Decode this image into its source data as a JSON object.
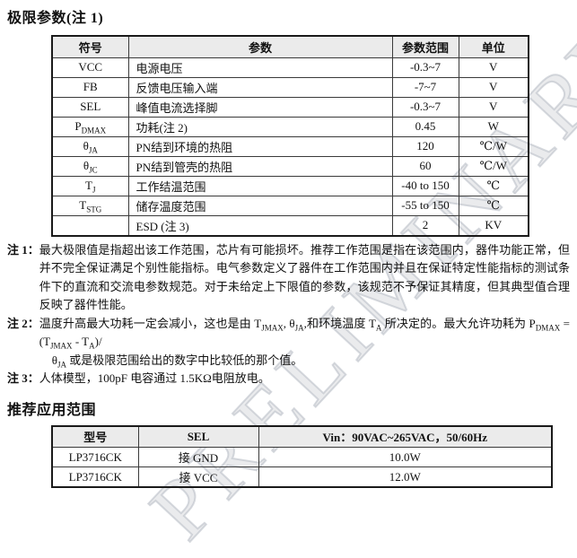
{
  "watermark": {
    "text": "PRELIMINARY"
  },
  "colors": {
    "table_header_bg": "#ebebeb",
    "table_border": "#1a1a1a",
    "text": "#111111",
    "watermark": "#b9bec5"
  },
  "sections": {
    "limits_title": "极限参数(注 1)",
    "apps_title": "推荐应用范围"
  },
  "limits_table": {
    "headers": {
      "symbol": "符号",
      "param": "参数",
      "range": "参数范围",
      "unit": "单位"
    },
    "rows": [
      {
        "symbol": "VCC",
        "param": "电源电压",
        "range": "-0.3~7",
        "unit": "V"
      },
      {
        "symbol": "FB",
        "param": "反馈电压输入端",
        "range": "-7~7",
        "unit": "V"
      },
      {
        "symbol": "SEL",
        "param": "峰值电流选择脚",
        "range": "-0.3~7",
        "unit": "V"
      },
      {
        "symbol": "P~DMAX~",
        "param": "功耗(注 2)",
        "range": "0.45",
        "unit": "W"
      },
      {
        "symbol": "θ~JA~",
        "param": "PN结到环境的热阻",
        "range": "120",
        "unit": "℃/W"
      },
      {
        "symbol": "θ~JC~",
        "param": "PN结到管壳的热阻",
        "range": "60",
        "unit": "℃/W"
      },
      {
        "symbol": "T~J~",
        "param": "工作结温范围",
        "range": "-40 to 150",
        "unit": "℃"
      },
      {
        "symbol": "T~STG~",
        "param": "储存温度范围",
        "range": "-55 to 150",
        "unit": "℃"
      },
      {
        "symbol": "",
        "param": "ESD (注 3)",
        "range": "2",
        "unit": "KV"
      }
    ]
  },
  "notes": {
    "n1_label": "注 1：",
    "n1_text": "最大极限值是指超出该工作范围，芯片有可能损坏。推荐工作范围是指在该范围内，器件功能正常，但并不完全保证满足个别性能指标。电气参数定义了器件在工作范围内并且在保证特定性能指标的测试条件下的直流和交流电参数规范。对于未给定上下限值的参数，该规范不予保证其精度，但其典型值合理反映了器件性能。",
    "n2_label": "注 2：",
    "n2_line1": "温度升高最大功耗一定会减小，这也是由 T~JMAX~, θ~JA~,和环境温度 T~A~ 所决定的。最大允许功耗为 P~DMAX~ = (T~JMAX~ - T~A~)/",
    "n2_line2": "θ~JA~ 或是极限范围给出的数字中比较低的那个值。",
    "n3_label": "注 3：",
    "n3_text": "人体模型，100pF 电容通过 1.5KΩ电阻放电。"
  },
  "apps_table": {
    "headers": {
      "model": "型号",
      "sel": "SEL",
      "vin": "Vin：90VAC~265VAC，50/60Hz"
    },
    "rows": [
      {
        "model": "LP3716CK",
        "sel": "接 GND",
        "power": "10.0W"
      },
      {
        "model": "LP3716CK",
        "sel": "接 VCC",
        "power": "12.0W"
      }
    ]
  }
}
